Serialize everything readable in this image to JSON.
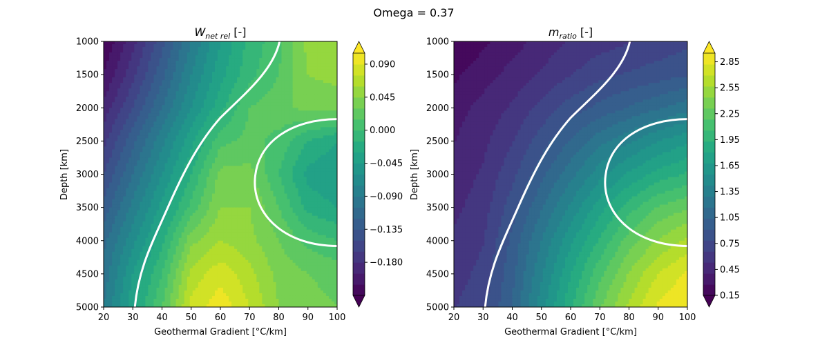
{
  "figure": {
    "suptitle": "Omega = 0.37"
  },
  "chart_data": [
    {
      "type": "contourf",
      "title": "W",
      "title_subscript": "net rel",
      "title_unit": " [-]",
      "xlabel": "Geothermal Gradient [°C/km]",
      "ylabel": "Depth [km]",
      "xlim": [
        20,
        100
      ],
      "ylim": [
        5000,
        1000
      ],
      "y_inverted": true,
      "xticks": [
        20,
        30,
        40,
        50,
        60,
        70,
        80,
        90,
        100
      ],
      "yticks": [
        1000,
        1500,
        2000,
        2500,
        3000,
        3500,
        4000,
        4500,
        5000
      ],
      "colormap": "viridis",
      "colorbar": {
        "range": [
          -0.225,
          0.105
        ],
        "extend": "both",
        "ticks": [
          0.09,
          0.045,
          0.0,
          -0.045,
          -0.09,
          -0.135,
          -0.18
        ],
        "tick_labels": [
          "0.090",
          "0.045",
          "0.000",
          "−0.045",
          "−0.090",
          "−0.135",
          "−0.180"
        ]
      },
      "zero_contour": "white",
      "field": {
        "x": [
          20,
          30,
          40,
          50,
          60,
          70,
          80,
          90,
          100
        ],
        "y": [
          1000,
          1500,
          2000,
          2500,
          3000,
          3500,
          4000,
          4500,
          5000
        ],
        "z": [
          [
            -0.225,
            -0.185,
            -0.14,
            -0.09,
            -0.045,
            -0.01,
            0.01,
            0.05,
            0.055
          ],
          [
            -0.21,
            -0.17,
            -0.125,
            -0.075,
            -0.035,
            -0.005,
            0.015,
            0.045,
            0.05
          ],
          [
            -0.19,
            -0.15,
            -0.105,
            -0.06,
            -0.02,
            0.015,
            0.025,
            0.035,
            0.035
          ],
          [
            -0.17,
            -0.125,
            -0.08,
            -0.035,
            0.01,
            0.02,
            0.01,
            -0.015,
            -0.03
          ],
          [
            -0.15,
            -0.105,
            -0.06,
            -0.015,
            0.035,
            0.035,
            0.0,
            -0.035,
            -0.045
          ],
          [
            -0.13,
            -0.085,
            -0.04,
            0.005,
            0.045,
            0.045,
            0.015,
            -0.02,
            -0.03
          ],
          [
            -0.11,
            -0.065,
            -0.02,
            0.04,
            0.06,
            0.05,
            0.03,
            0.01,
            0.0
          ],
          [
            -0.1,
            -0.045,
            0.0,
            0.065,
            0.085,
            0.065,
            0.04,
            0.03,
            0.025
          ],
          [
            -0.09,
            -0.035,
            0.015,
            0.08,
            0.1,
            0.075,
            0.045,
            0.035,
            0.03
          ]
        ]
      }
    },
    {
      "type": "contourf",
      "title": "m",
      "title_subscript": "ratio",
      "title_unit": " [-]",
      "xlabel": "Geothermal Gradient [°C/km]",
      "ylabel": "Depth [km]",
      "xlim": [
        20,
        100
      ],
      "ylim": [
        5000,
        1000
      ],
      "y_inverted": true,
      "xticks": [
        20,
        30,
        40,
        50,
        60,
        70,
        80,
        90,
        100
      ],
      "yticks": [
        1000,
        1500,
        2000,
        2500,
        3000,
        3500,
        4000,
        4500,
        5000
      ],
      "colormap": "viridis",
      "colorbar": {
        "range": [
          0.15,
          2.95
        ],
        "extend": "both",
        "ticks": [
          2.85,
          2.55,
          2.25,
          1.95,
          1.65,
          1.35,
          1.05,
          0.75,
          0.45,
          0.15
        ],
        "tick_labels": [
          "2.85",
          "2.55",
          "2.25",
          "1.95",
          "1.65",
          "1.35",
          "1.05",
          "0.75",
          "0.45",
          "0.15"
        ]
      },
      "zero_contour": "white",
      "field": {
        "x": [
          20,
          30,
          40,
          50,
          60,
          70,
          80,
          90,
          100
        ],
        "y": [
          1000,
          1500,
          2000,
          2500,
          3000,
          3500,
          4000,
          4500,
          5000
        ],
        "z": [
          [
            0.15,
            0.25,
            0.35,
            0.45,
            0.55,
            0.6,
            0.65,
            0.7,
            0.75
          ],
          [
            0.25,
            0.35,
            0.45,
            0.55,
            0.65,
            0.75,
            0.8,
            0.85,
            0.9
          ],
          [
            0.35,
            0.45,
            0.55,
            0.7,
            0.85,
            0.95,
            1.05,
            1.15,
            1.25
          ],
          [
            0.4,
            0.5,
            0.65,
            0.85,
            1.05,
            1.25,
            1.4,
            1.55,
            1.65
          ],
          [
            0.45,
            0.55,
            0.75,
            1.0,
            1.25,
            1.5,
            1.7,
            1.85,
            1.95
          ],
          [
            0.5,
            0.6,
            0.85,
            1.15,
            1.45,
            1.75,
            2.0,
            2.2,
            2.3
          ],
          [
            0.55,
            0.65,
            0.95,
            1.3,
            1.65,
            1.95,
            2.25,
            2.45,
            2.6
          ],
          [
            0.6,
            0.7,
            1.0,
            1.4,
            1.8,
            2.15,
            2.45,
            2.7,
            2.85
          ],
          [
            0.65,
            0.75,
            1.05,
            1.5,
            1.9,
            2.3,
            2.6,
            2.85,
            2.95
          ]
        ]
      }
    }
  ]
}
